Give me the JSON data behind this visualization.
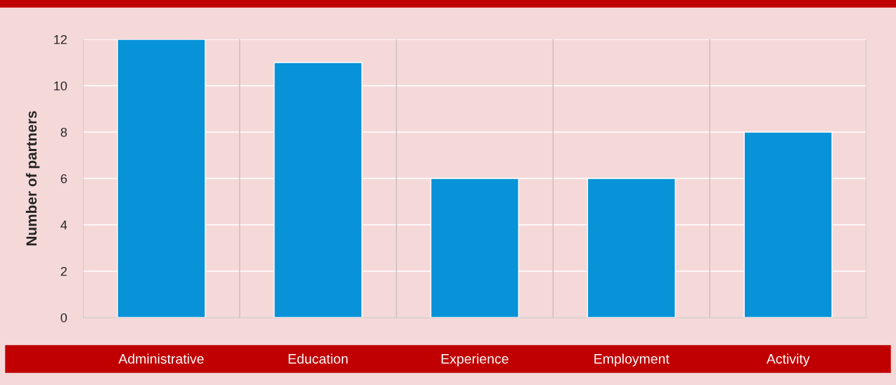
{
  "chart_data": {
    "type": "bar",
    "ylabel": "Number of partners",
    "categories": [
      "Administrative",
      "Education",
      "Experience",
      "Employment",
      "Activity"
    ],
    "values": [
      12,
      11,
      6,
      6,
      8
    ],
    "color": "#0892d8",
    "ylim": [
      0,
      12
    ],
    "yticks": [
      0,
      2,
      4,
      6,
      8,
      10,
      12
    ],
    "grid": true
  }
}
